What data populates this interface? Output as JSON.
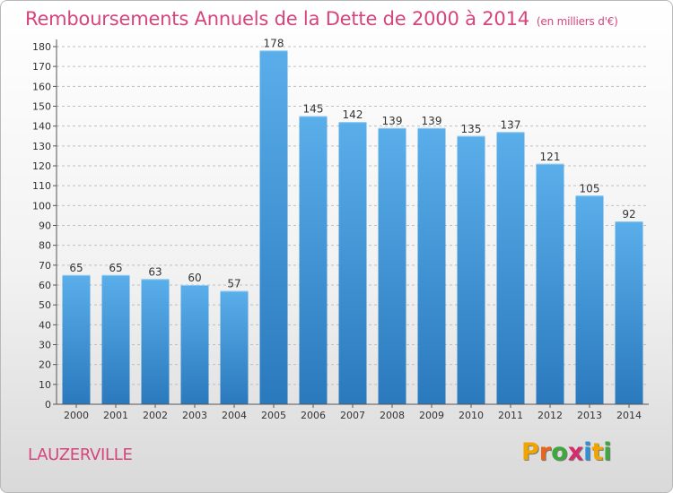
{
  "header": {
    "title": "Remboursements Annuels de la Dette de 2000 à 2014",
    "unit": "(en milliers d'€)"
  },
  "footer": {
    "municipality": "LAUZERVILLE",
    "logo_letters": [
      "P",
      "r",
      "o",
      "x",
      "i",
      "t",
      "i"
    ],
    "logo_colors": [
      "#f0a500",
      "#e8651a",
      "#3da83d",
      "#d62b6c",
      "#2f8fd8",
      "#f0a500",
      "#3da83d"
    ]
  },
  "colors": {
    "bar_top": "#5aaeea",
    "bar_bottom": "#2a79bd",
    "grid": "#bfbfbf",
    "axis": "#555555",
    "title": "#d6447c"
  },
  "chart_data": {
    "type": "bar",
    "title": "Remboursements Annuels de la Dette de 2000 à 2014",
    "xlabel": "",
    "ylabel": "",
    "categories": [
      "2000",
      "2001",
      "2002",
      "2003",
      "2004",
      "2005",
      "2006",
      "2007",
      "2008",
      "2009",
      "2010",
      "2011",
      "2012",
      "2013",
      "2014"
    ],
    "values": [
      65,
      65,
      63,
      60,
      57,
      178,
      145,
      142,
      139,
      139,
      135,
      137,
      121,
      105,
      92
    ],
    "ylim": [
      0,
      180
    ],
    "yticks": [
      0,
      10,
      20,
      30,
      40,
      50,
      60,
      70,
      80,
      90,
      100,
      110,
      120,
      130,
      140,
      150,
      160,
      170,
      180
    ],
    "grid": true,
    "data_labels": true
  }
}
